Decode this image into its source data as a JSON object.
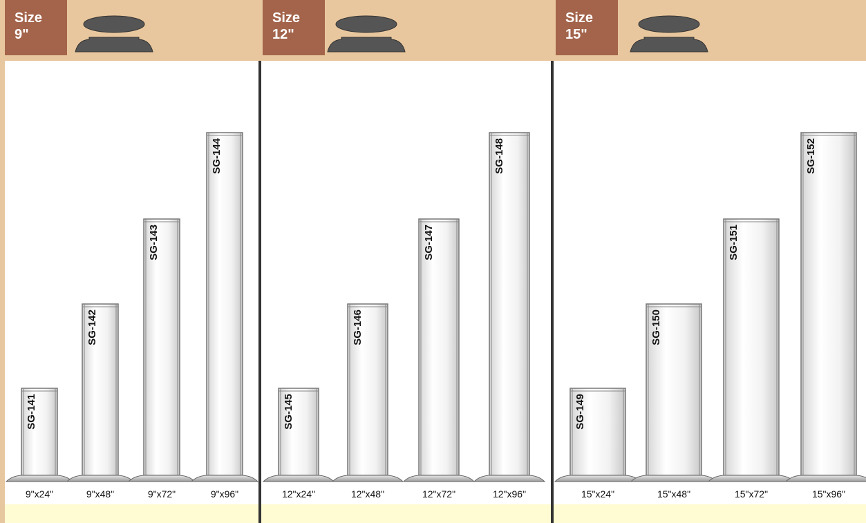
{
  "panels": [
    {
      "size_label": "Size",
      "size_value": "9\"",
      "products": [
        {
          "code": "SG-141",
          "dimensions": "9\"x24\""
        },
        {
          "code": "SG-142",
          "dimensions": "9\"x48\""
        },
        {
          "code": "SG-143",
          "dimensions": "9\"x72\""
        },
        {
          "code": "SG-144",
          "dimensions": "9\"x96\""
        }
      ]
    },
    {
      "size_label": "Size",
      "size_value": "12\"",
      "products": [
        {
          "code": "SG-145",
          "dimensions": "12\"x24\""
        },
        {
          "code": "SG-146",
          "dimensions": "12\"x48\""
        },
        {
          "code": "SG-147",
          "dimensions": "12\"x72\""
        },
        {
          "code": "SG-148",
          "dimensions": "12\"x96\""
        }
      ]
    },
    {
      "size_label": "Size",
      "size_value": "15\"",
      "products": [
        {
          "code": "SG-149",
          "dimensions": "15\"x24\""
        },
        {
          "code": "SG-150",
          "dimensions": "15\"x48\""
        },
        {
          "code": "SG-151",
          "dimensions": "15\"x72\""
        },
        {
          "code": "SG-152",
          "dimensions": "15\"x96\""
        }
      ]
    }
  ]
}
